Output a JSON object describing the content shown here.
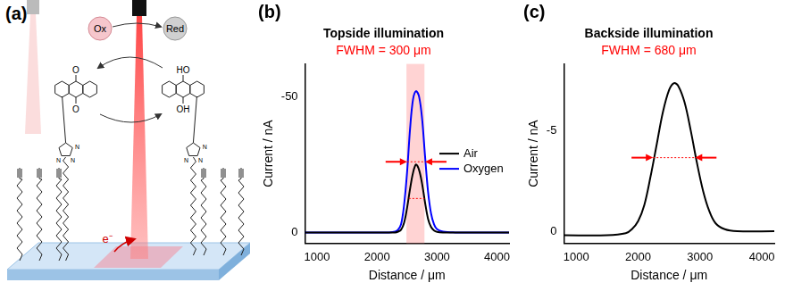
{
  "diagram": {
    "label": "(a)",
    "ox": "Ox",
    "red": "Red",
    "electron": "e⁻",
    "quinone_atoms": [
      "O",
      "O"
    ],
    "hydroquinone_atoms": [
      "HO",
      "OH"
    ],
    "triazole_atoms": [
      "N",
      "N",
      "N"
    ]
  },
  "chart_data": [
    {
      "type": "line",
      "annotations": [
        "(b)"
      ],
      "title": "Topside illumination",
      "subtitle": "FWHM = 300 μm",
      "x_label": "Distance / μm",
      "y_label": "Current / nA",
      "xlim": [
        800,
        4200
      ],
      "xticks": [
        1000,
        2000,
        3000,
        4000
      ],
      "ylim": [
        4,
        -62
      ],
      "yticks": [
        -50,
        0
      ],
      "grid": false,
      "legend": "right",
      "band": [
        2490,
        2790
      ],
      "fwhm_lines": [
        {
          "y": -26,
          "x": [
            2500,
            2800
          ]
        },
        {
          "y": -12.5,
          "x": [
            2530,
            2790
          ]
        }
      ],
      "x": [
        800,
        1500,
        2000,
        2200,
        2300,
        2350,
        2400,
        2450,
        2500,
        2550,
        2600,
        2650,
        2700,
        2750,
        2800,
        2850,
        2900,
        2950,
        3000,
        3100,
        3300,
        3600,
        4200
      ],
      "series": [
        {
          "name": "Air",
          "color": "#000000",
          "values": [
            0,
            0,
            0,
            0,
            0,
            -0.3,
            -1,
            -3.5,
            -9,
            -16,
            -22,
            -25,
            -23,
            -18,
            -11,
            -5,
            -2,
            -0.7,
            -0.2,
            0,
            0,
            0,
            0
          ]
        },
        {
          "name": "Oxygen",
          "color": "#0000ff",
          "values": [
            0,
            0,
            0,
            0,
            -0.3,
            -1,
            -3,
            -10,
            -22,
            -38,
            -49,
            -52,
            -50,
            -42,
            -28,
            -15,
            -7,
            -3,
            -1.2,
            -0.3,
            0,
            0,
            0
          ]
        }
      ]
    },
    {
      "type": "line",
      "annotations": [
        "(c)"
      ],
      "title": "Backside illumination",
      "subtitle": "FWHM = 680 μm",
      "x_label": "Distance / μm",
      "y_label": "Current / nA",
      "xlim": [
        800,
        4200
      ],
      "xticks": [
        1000,
        2000,
        3000,
        4000
      ],
      "ylim": [
        0.6,
        -8.3
      ],
      "yticks": [
        -5,
        0
      ],
      "grid": false,
      "fwhm_lines": [
        {
          "y": -3.65,
          "x": [
            2240,
            2920
          ]
        }
      ],
      "x": [
        800,
        1500,
        1800,
        1900,
        2000,
        2100,
        2200,
        2300,
        2400,
        2500,
        2580,
        2650,
        2750,
        2850,
        2950,
        3050,
        3150,
        3250,
        3400,
        3600,
        4200
      ],
      "values": [
        0.2,
        0.2,
        0.1,
        -0.1,
        -0.5,
        -1.3,
        -2.7,
        -4.3,
        -5.9,
        -7.0,
        -7.35,
        -7.2,
        -6.4,
        -5.0,
        -3.4,
        -2.0,
        -1.0,
        -0.4,
        -0.1,
        0,
        0
      ],
      "color": "#000000"
    }
  ]
}
